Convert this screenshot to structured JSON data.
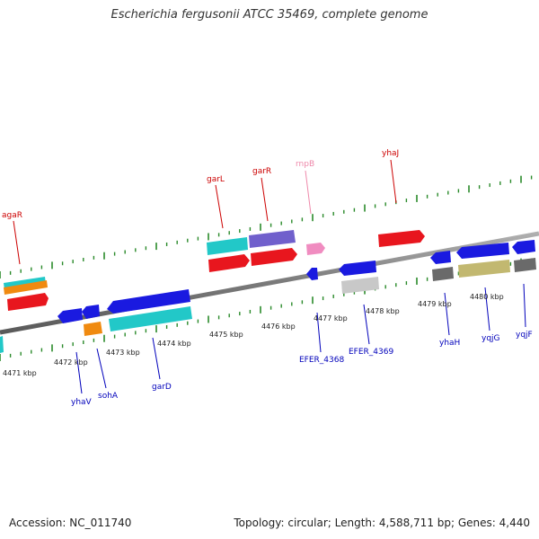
{
  "title": "Escherichia fergusonii ATCC 35469, complete genome",
  "footer": {
    "accession": "Accession: NC_011740",
    "summary": "Topology: circular; Length: 4,588,711 bp; Genes: 4,440"
  },
  "kbp_labels": [
    "4471 kbp",
    "4472 kbp",
    "4473 kbp",
    "4474 kbp",
    "4475 kbp",
    "4476 kbp",
    "4477 kbp",
    "4478 kbp",
    "4479 kbp",
    "4480 kbp"
  ],
  "gene_labels_top": [
    {
      "label": "agaR",
      "color": "#cc0000"
    },
    {
      "label": "garL",
      "color": "#cc0000"
    },
    {
      "label": "garR",
      "color": "#cc0000"
    },
    {
      "label": "rnpB",
      "color": "#ee88aa"
    },
    {
      "label": "yhaJ",
      "color": "#cc0000"
    }
  ],
  "gene_labels_bottom": [
    {
      "label": "yhaV",
      "color": "#0000bb"
    },
    {
      "label": "sohA",
      "color": "#0000bb"
    },
    {
      "label": "garD",
      "color": "#0000bb"
    },
    {
      "label": "EFER_4368",
      "color": "#0000bb"
    },
    {
      "label": "EFER_4369",
      "color": "#0000bb"
    },
    {
      "label": "yhaH",
      "color": "#0000bb"
    },
    {
      "label": "yqjG",
      "color": "#0000bb"
    },
    {
      "label": "yqjF",
      "color": "#0000bb"
    }
  ],
  "colors": {
    "axis": "#8a8a8a",
    "ticks": "#2a8a2a",
    "red": "#e8161e",
    "blue": "#1a1ae0",
    "cyan": "#22c8c8",
    "orange": "#f08a10",
    "violet": "#7060cc",
    "pink": "#f08cc0",
    "gray": "#6a6a6a",
    "lightgray": "#c8c8c8",
    "olive": "#c2b870"
  }
}
